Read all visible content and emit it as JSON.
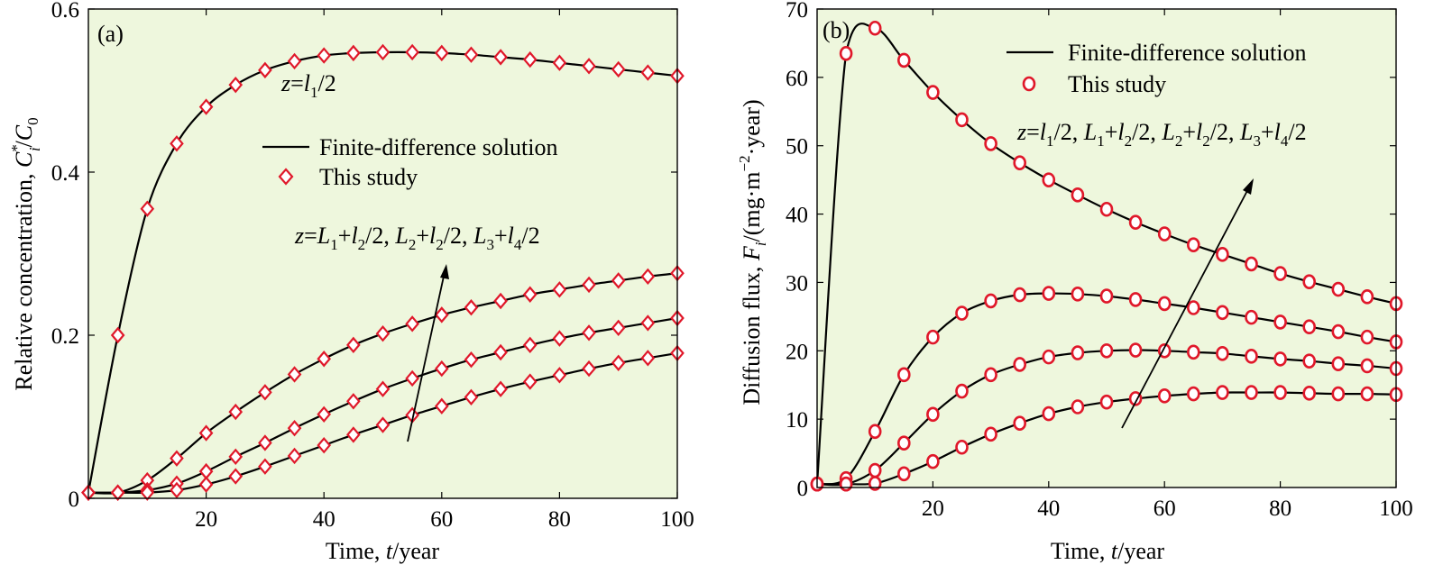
{
  "chart_data": [
    {
      "id": "a",
      "type": "line",
      "panel_label": "(a)",
      "xlabel": {
        "pre": "Time, ",
        "var": "t",
        "post": "/year"
      },
      "ylabel": "Relative concentration, C*_i/C_0",
      "xlim": [
        0,
        100
      ],
      "ylim": [
        0,
        0.6
      ],
      "xticks": [
        20,
        40,
        60,
        80,
        100
      ],
      "xtick_labels": [
        "20",
        "40",
        "60",
        "80",
        "100"
      ],
      "yticks": [
        0,
        0.2,
        0.4,
        0.6
      ],
      "ytick_labels": [
        "0",
        "0.2",
        "0.4",
        "0.6"
      ],
      "grid": false,
      "legend": {
        "position": "center-right",
        "line_label": "Finite-difference solution",
        "marker_label": "This study",
        "marker": "diamond"
      },
      "annotations": [
        {
          "text": "z=l1/2"
        },
        {
          "text": "z=L1+l2/2, L2+l2/2, L3+l4/2"
        }
      ],
      "marker_x": [
        0,
        5,
        10,
        15,
        20,
        25,
        30,
        35,
        40,
        45,
        50,
        55,
        60,
        65,
        70,
        75,
        80,
        85,
        90,
        95,
        100
      ],
      "series": [
        {
          "values": [
            0.007,
            0.2,
            0.355,
            0.435,
            0.48,
            0.507,
            0.525,
            0.536,
            0.543,
            0.546,
            0.547,
            0.547,
            0.546,
            0.544,
            0.541,
            0.538,
            0.534,
            0.53,
            0.526,
            0.522,
            0.518
          ]
        },
        {
          "values": [
            0.007,
            0.007,
            0.022,
            0.049,
            0.08,
            0.106,
            0.13,
            0.152,
            0.171,
            0.188,
            0.202,
            0.214,
            0.225,
            0.234,
            0.242,
            0.25,
            0.256,
            0.262,
            0.267,
            0.272,
            0.276
          ]
        },
        {
          "values": [
            0.007,
            0.007,
            0.01,
            0.018,
            0.033,
            0.051,
            0.068,
            0.086,
            0.103,
            0.119,
            0.134,
            0.147,
            0.159,
            0.17,
            0.179,
            0.188,
            0.196,
            0.203,
            0.209,
            0.215,
            0.221
          ]
        },
        {
          "values": [
            0.007,
            0.007,
            0.007,
            0.01,
            0.017,
            0.027,
            0.039,
            0.052,
            0.065,
            0.078,
            0.09,
            0.102,
            0.113,
            0.124,
            0.134,
            0.143,
            0.151,
            0.159,
            0.166,
            0.172,
            0.178
          ]
        }
      ]
    },
    {
      "id": "b",
      "type": "line",
      "panel_label": "(b)",
      "xlabel": {
        "pre": "Time, ",
        "var": "t",
        "post": "/year"
      },
      "ylabel": "Diffusion flux, F_i/(mg·m^-2·year)",
      "xlim": [
        0,
        100
      ],
      "ylim": [
        0,
        70
      ],
      "xticks": [
        20,
        40,
        60,
        80,
        100
      ],
      "xtick_labels": [
        "20",
        "40",
        "60",
        "80",
        "100"
      ],
      "yticks": [
        0,
        10,
        20,
        30,
        40,
        50,
        60,
        70
      ],
      "ytick_labels": [
        "0",
        "10",
        "20",
        "30",
        "40",
        "50",
        "60",
        "70"
      ],
      "grid": false,
      "legend": {
        "position": "top-right",
        "line_label": "Finite-difference solution",
        "marker_label": "This study",
        "marker": "circle"
      },
      "annotations": [
        {
          "text": "z=l1/2, L1+l2/2, L2+l2/2, L3+l4/2"
        }
      ],
      "marker_x": [
        0,
        5,
        10,
        15,
        20,
        25,
        30,
        35,
        40,
        45,
        50,
        55,
        60,
        65,
        70,
        75,
        80,
        85,
        90,
        95,
        100
      ],
      "series": [
        {
          "values": [
            0.5,
            63.5,
            67.2,
            62.5,
            57.8,
            53.8,
            50.3,
            47.5,
            45.0,
            42.8,
            40.7,
            38.8,
            37.1,
            35.5,
            34.1,
            32.7,
            31.3,
            30.1,
            29.0,
            27.9,
            26.9
          ]
        },
        {
          "values": [
            0.5,
            1.3,
            8.2,
            16.5,
            22.0,
            25.5,
            27.3,
            28.2,
            28.4,
            28.3,
            28.0,
            27.5,
            26.9,
            26.3,
            25.6,
            24.9,
            24.2,
            23.5,
            22.8,
            22.0,
            21.3
          ]
        },
        {
          "values": [
            0.5,
            0.5,
            2.5,
            6.5,
            10.7,
            14.1,
            16.5,
            18.0,
            19.1,
            19.7,
            20.0,
            20.1,
            20.0,
            19.8,
            19.6,
            19.2,
            18.8,
            18.5,
            18.1,
            17.8,
            17.4
          ]
        },
        {
          "values": [
            0.5,
            0.5,
            0.6,
            2.0,
            3.8,
            5.9,
            7.8,
            9.4,
            10.8,
            11.8,
            12.5,
            13.0,
            13.4,
            13.7,
            13.9,
            13.9,
            13.9,
            13.8,
            13.7,
            13.7,
            13.6
          ]
        }
      ]
    }
  ]
}
